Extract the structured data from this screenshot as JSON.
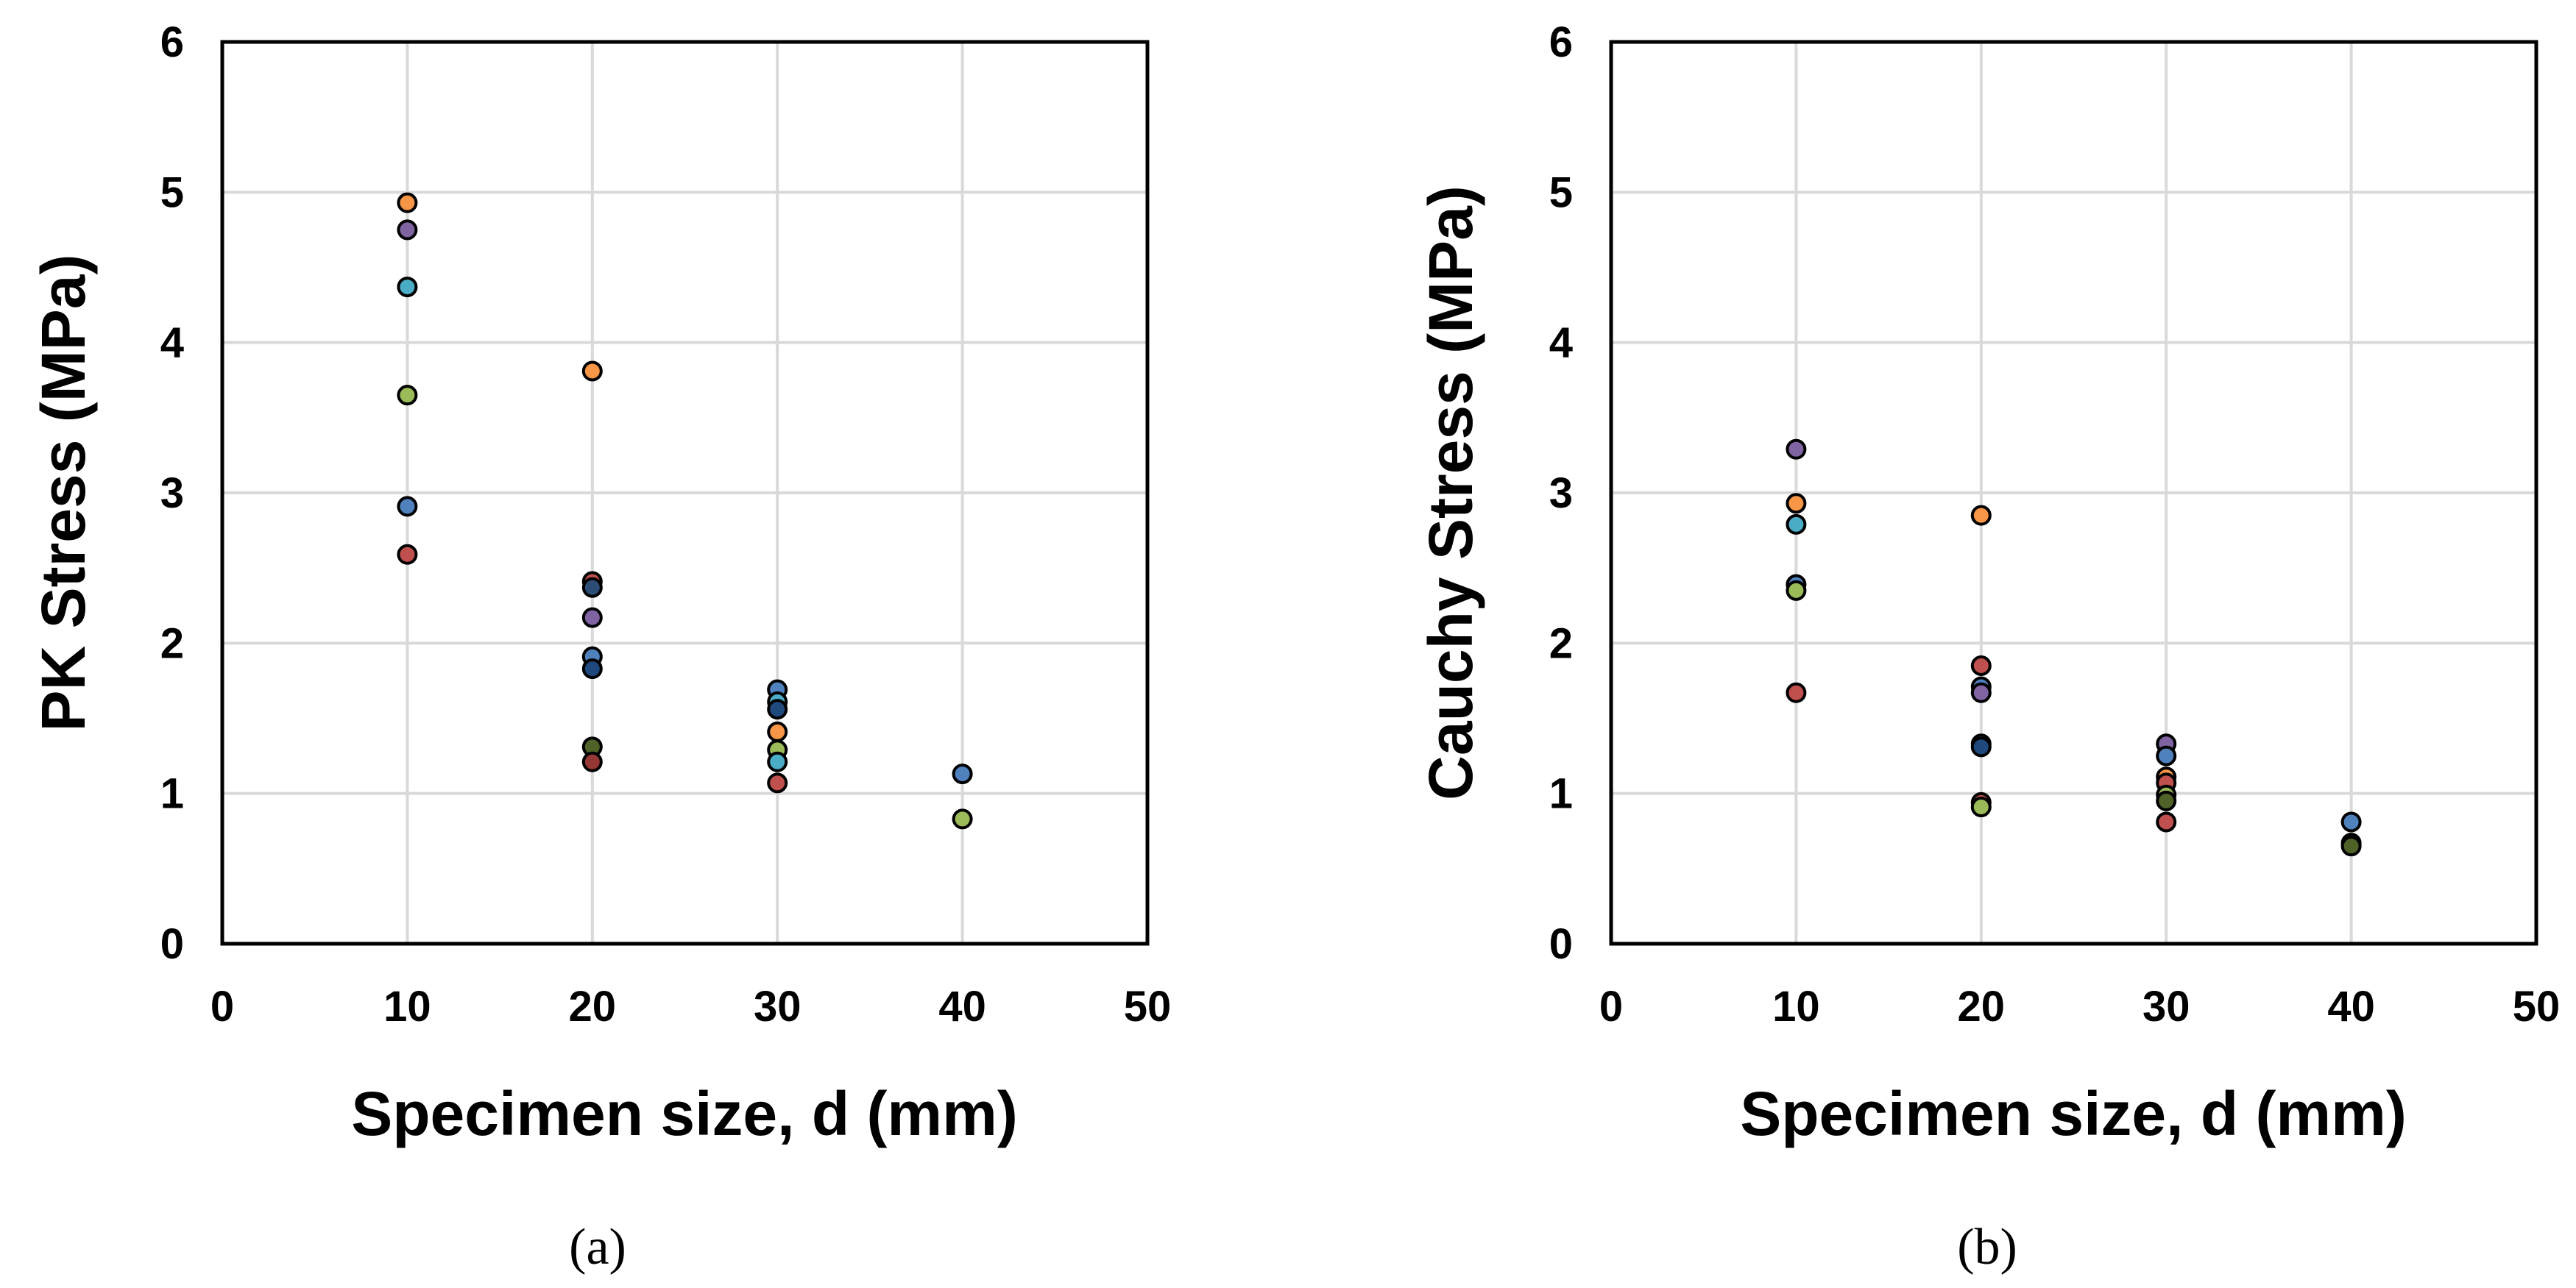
{
  "chart_data": [
    {
      "type": "scatter",
      "caption": "(a)",
      "xlabel": "Specimen size, d (mm)",
      "ylabel": "PK Stress (MPa)",
      "xlim": [
        0,
        50
      ],
      "ylim": [
        0,
        6
      ],
      "xticks": [
        "0",
        "10",
        "20",
        "30",
        "40",
        "50"
      ],
      "yticks": [
        "0",
        "1",
        "2",
        "3",
        "4",
        "5",
        "6"
      ],
      "grid": true,
      "points": [
        {
          "x": 10,
          "y": 4.93,
          "color": "#f79646"
        },
        {
          "x": 10,
          "y": 4.75,
          "color": "#8064a2"
        },
        {
          "x": 10,
          "y": 4.37,
          "color": "#4bacc6"
        },
        {
          "x": 10,
          "y": 3.65,
          "color": "#9bbb59"
        },
        {
          "x": 10,
          "y": 2.91,
          "color": "#4f81bd"
        },
        {
          "x": 10,
          "y": 2.59,
          "color": "#c0504d"
        },
        {
          "x": 20,
          "y": 3.81,
          "color": "#f79646"
        },
        {
          "x": 20,
          "y": 2.41,
          "color": "#c0504d"
        },
        {
          "x": 20,
          "y": 2.37,
          "color": "#2c4d75"
        },
        {
          "x": 20,
          "y": 2.17,
          "color": "#8064a2"
        },
        {
          "x": 20,
          "y": 1.91,
          "color": "#4f81bd"
        },
        {
          "x": 20,
          "y": 1.83,
          "color": "#1f497d"
        },
        {
          "x": 20,
          "y": 1.31,
          "color": "#4f6228"
        },
        {
          "x": 20,
          "y": 1.21,
          "color": "#953735"
        },
        {
          "x": 30,
          "y": 1.69,
          "color": "#4f81bd"
        },
        {
          "x": 30,
          "y": 1.61,
          "color": "#4bacc6"
        },
        {
          "x": 30,
          "y": 1.56,
          "color": "#1f497d"
        },
        {
          "x": 30,
          "y": 1.41,
          "color": "#f79646"
        },
        {
          "x": 30,
          "y": 1.29,
          "color": "#9bbb59"
        },
        {
          "x": 30,
          "y": 1.21,
          "color": "#4bacc6"
        },
        {
          "x": 30,
          "y": 1.07,
          "color": "#c0504d"
        },
        {
          "x": 40,
          "y": 1.13,
          "color": "#4f81bd"
        },
        {
          "x": 40,
          "y": 0.83,
          "color": "#9bbb59"
        }
      ]
    },
    {
      "type": "scatter",
      "caption": "(b)",
      "xlabel": "Specimen size, d (mm)",
      "ylabel": "Cauchy Stress (MPa)",
      "xlim": [
        0,
        50
      ],
      "ylim": [
        0,
        6
      ],
      "xticks": [
        "0",
        "10",
        "20",
        "30",
        "40",
        "50"
      ],
      "yticks": [
        "0",
        "1",
        "2",
        "3",
        "4",
        "5",
        "6"
      ],
      "grid": true,
      "points": [
        {
          "x": 10,
          "y": 3.29,
          "color": "#8064a2"
        },
        {
          "x": 10,
          "y": 2.93,
          "color": "#f79646"
        },
        {
          "x": 10,
          "y": 2.79,
          "color": "#4bacc6"
        },
        {
          "x": 10,
          "y": 2.39,
          "color": "#4f81bd"
        },
        {
          "x": 10,
          "y": 2.35,
          "color": "#9bbb59"
        },
        {
          "x": 10,
          "y": 1.67,
          "color": "#c0504d"
        },
        {
          "x": 20,
          "y": 2.85,
          "color": "#f79646"
        },
        {
          "x": 20,
          "y": 1.85,
          "color": "#c0504d"
        },
        {
          "x": 20,
          "y": 1.71,
          "color": "#4f81bd"
        },
        {
          "x": 20,
          "y": 1.67,
          "color": "#8064a2"
        },
        {
          "x": 20,
          "y": 1.33,
          "color": "#4f81bd"
        },
        {
          "x": 20,
          "y": 1.31,
          "color": "#1f497d"
        },
        {
          "x": 20,
          "y": 0.94,
          "color": "#c0504d"
        },
        {
          "x": 20,
          "y": 0.91,
          "color": "#9bbb59"
        },
        {
          "x": 30,
          "y": 1.33,
          "color": "#8064a2"
        },
        {
          "x": 30,
          "y": 1.25,
          "color": "#4f81bd"
        },
        {
          "x": 30,
          "y": 1.11,
          "color": "#f79646"
        },
        {
          "x": 30,
          "y": 1.07,
          "color": "#c0504d"
        },
        {
          "x": 30,
          "y": 0.99,
          "color": "#9bbb59"
        },
        {
          "x": 30,
          "y": 0.95,
          "color": "#4f6228"
        },
        {
          "x": 30,
          "y": 0.81,
          "color": "#c0504d"
        },
        {
          "x": 40,
          "y": 0.81,
          "color": "#4f81bd"
        },
        {
          "x": 40,
          "y": 0.67,
          "color": "#9bbb59"
        },
        {
          "x": 40,
          "y": 0.65,
          "color": "#4f6228"
        }
      ]
    }
  ]
}
